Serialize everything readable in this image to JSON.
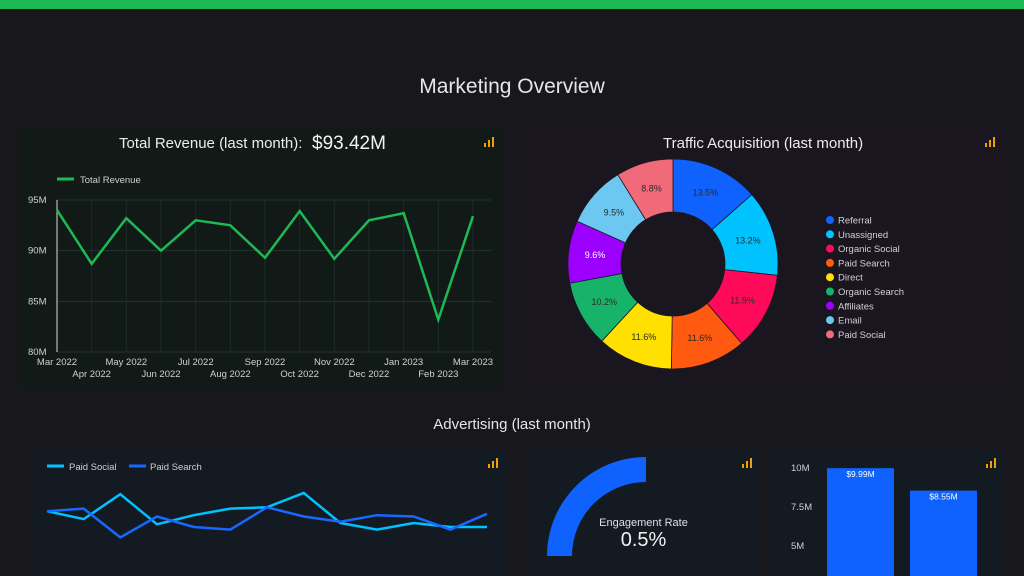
{
  "page": {
    "title": "Marketing Overview"
  },
  "revenue_card": {
    "title": "Total Revenue (last month):",
    "value": "$93.42M",
    "legend": "Total Revenue",
    "chart_data": {
      "type": "line",
      "x": [
        "Mar 2022",
        "Apr 2022",
        "May 2022",
        "Jun 2022",
        "Jul 2022",
        "Aug 2022",
        "Sep 2022",
        "Oct 2022",
        "Nov 2022",
        "Dec 2022",
        "Jan 2023",
        "Feb 2023",
        "Mar 2023"
      ],
      "series": [
        {
          "name": "Total Revenue",
          "values": [
            94.0,
            88.7,
            93.2,
            90.0,
            93.0,
            92.5,
            89.3,
            93.9,
            89.2,
            93.0,
            93.7,
            83.2,
            93.4
          ],
          "color": "#1db954"
        }
      ],
      "yticks": [
        "95M",
        "90M",
        "85M",
        "80M"
      ],
      "ylim": [
        80,
        95
      ],
      "grid": true,
      "legend": "top-left"
    }
  },
  "traffic_card": {
    "title": "Traffic Acquisition (last month)",
    "chart_data": {
      "type": "pie",
      "donut": true,
      "labels": [
        "Referral",
        "Unassigned",
        "Organic Social",
        "Paid Search",
        "Direct",
        "Organic Search",
        "Affiliates",
        "Email",
        "Paid Social"
      ],
      "values": [
        13.5,
        13.2,
        11.9,
        11.6,
        11.6,
        10.2,
        9.6,
        9.5,
        8.8
      ],
      "value_labels": [
        "13.5%",
        "13.2%",
        "11.9%",
        "11.6%",
        "11.6%",
        "10.2%",
        "9.6%",
        "9.5%",
        "8.8%"
      ],
      "colors": [
        "#0f62fe",
        "#00c2ff",
        "#ff0a5a",
        "#ff5a0f",
        "#ffe000",
        "#18b36a",
        "#9b00ff",
        "#6cc8f0",
        "#f06a7a"
      ],
      "legend": "right"
    }
  },
  "advertising": {
    "title": "Advertising (last month)",
    "lines_card": {
      "chart_data": {
        "type": "line",
        "series": [
          {
            "name": "Paid Social",
            "values": [
              6.0,
              5.4,
              7.3,
              5.0,
              5.7,
              6.2,
              6.3,
              7.4,
              5.1,
              4.6,
              5.1,
              4.8,
              4.8
            ],
            "color": "#00c2ff"
          },
          {
            "name": "Paid Search",
            "values": [
              6.0,
              6.2,
              4.0,
              5.6,
              4.8,
              4.6,
              6.3,
              5.6,
              5.2,
              5.7,
              5.6,
              4.6,
              5.8
            ],
            "color": "#1868ff"
          }
        ],
        "legend": "top-left"
      }
    },
    "engagement_card": {
      "label": "Engagement Rate",
      "value": "0.5%",
      "fraction": 0.5
    },
    "bar_card": {
      "chart_data": {
        "type": "bar",
        "values": [
          9.99,
          8.55
        ],
        "value_labels": [
          "$9.99M",
          "$8.55M"
        ],
        "yticks": [
          "10M",
          "7.5M",
          "5M"
        ],
        "color": "#0f62fe"
      }
    }
  },
  "colors": {
    "accent": "#1db954",
    "background": "#17171c",
    "icon": "#f0a000"
  },
  "icons": {
    "card_menu": "bar-chart-icon"
  }
}
